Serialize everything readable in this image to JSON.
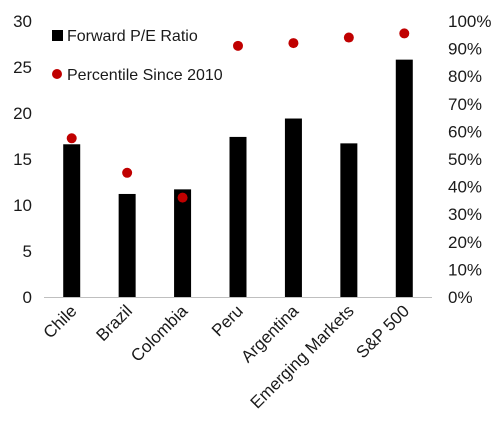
{
  "chart_data": {
    "type": "bar",
    "categories": [
      "Chile",
      "Brazil",
      "Colombia",
      "Peru",
      "Argentina",
      "Emerging Markets",
      "S&P 500"
    ],
    "series": [
      {
        "name": "Forward P/E Ratio",
        "type": "bar",
        "axis": "left",
        "color": "#000000",
        "values": [
          16.6,
          11.2,
          11.7,
          17.4,
          19.4,
          16.7,
          25.8
        ]
      },
      {
        "name": "Percentile Since 2010",
        "type": "scatter",
        "axis": "right",
        "color": "#c00000",
        "values": [
          57.5,
          45,
          36,
          91,
          92,
          94,
          95.5
        ]
      }
    ],
    "y_left": {
      "min": 0,
      "max": 30,
      "ticks": [
        "0",
        "5",
        "10",
        "15",
        "20",
        "25",
        "30"
      ]
    },
    "y_right": {
      "min": 0,
      "max": 100,
      "ticks": [
        "0%",
        "10%",
        "20%",
        "30%",
        "40%",
        "50%",
        "60%",
        "70%",
        "80%",
        "90%",
        "100%"
      ]
    },
    "grid": false,
    "legend_position": "top-left"
  }
}
